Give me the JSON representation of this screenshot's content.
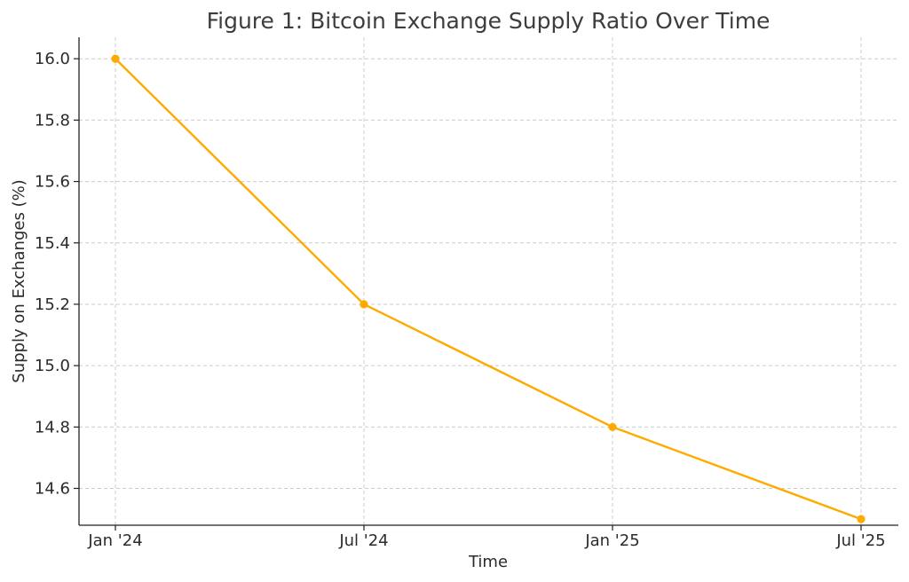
{
  "chart_data": {
    "type": "line",
    "title": "Figure 1: Bitcoin Exchange Supply Ratio Over Time",
    "xlabel": "Time",
    "ylabel": "Supply on Exchanges (%)",
    "x": [
      "Jan '24",
      "Jul '24",
      "Jan '25",
      "Jul '25"
    ],
    "series": [
      {
        "values": [
          16.0,
          15.2,
          14.8,
          14.5
        ],
        "color": "#FFAA00",
        "marker": "circle"
      }
    ],
    "ylim": [
      14.48,
      16.07
    ],
    "yticks": [
      14.6,
      14.8,
      15.0,
      15.2,
      15.4,
      15.6,
      15.8,
      16.0
    ],
    "ytick_labels": [
      "14.6",
      "14.8",
      "15.0",
      "15.2",
      "15.4",
      "15.6",
      "15.8",
      "16.0"
    ],
    "grid": true
  }
}
